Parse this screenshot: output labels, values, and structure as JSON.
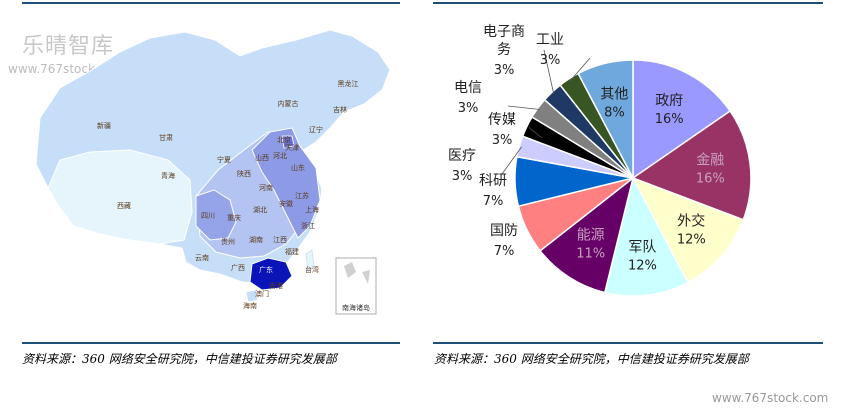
{
  "watermark": {
    "title": "乐晴智库",
    "url": "www.767stock.com",
    "bottom_url": "www.767stock.com"
  },
  "map": {
    "south_china_sea_label": "南海诸岛",
    "provinces": [
      {
        "name": "黑龙江",
        "level": 1
      },
      {
        "name": "吉林",
        "level": 1
      },
      {
        "name": "辽宁",
        "level": 2
      },
      {
        "name": "内蒙古",
        "level": 1
      },
      {
        "name": "新疆",
        "level": 1
      },
      {
        "name": "甘肃",
        "level": 1
      },
      {
        "name": "青海",
        "level": 0
      },
      {
        "name": "西藏",
        "level": 0
      },
      {
        "name": "宁夏",
        "level": 1
      },
      {
        "name": "陕西",
        "level": 3
      },
      {
        "name": "山西",
        "level": 3
      },
      {
        "name": "河北",
        "level": 3
      },
      {
        "name": "北京",
        "level": 4
      },
      {
        "name": "天津",
        "level": 3
      },
      {
        "name": "山东",
        "level": 3
      },
      {
        "name": "河南",
        "level": 2
      },
      {
        "name": "四川",
        "level": 3
      },
      {
        "name": "重庆",
        "level": 2
      },
      {
        "name": "湖北",
        "level": 2
      },
      {
        "name": "安徽",
        "level": 2
      },
      {
        "name": "江苏",
        "level": 3
      },
      {
        "name": "上海",
        "level": 3
      },
      {
        "name": "浙江",
        "level": 3
      },
      {
        "name": "贵州",
        "level": 2
      },
      {
        "name": "湖南",
        "level": 2
      },
      {
        "name": "江西",
        "level": 2
      },
      {
        "name": "福建",
        "level": 2
      },
      {
        "name": "云南",
        "level": 1
      },
      {
        "name": "广西",
        "level": 1
      },
      {
        "name": "广东",
        "level": 5
      },
      {
        "name": "台湾",
        "level": 0
      },
      {
        "name": "香港",
        "level": 4
      },
      {
        "name": "澳门",
        "level": 4
      },
      {
        "name": "海南",
        "level": 1
      }
    ]
  },
  "chart_data": {
    "type": "pie",
    "slices": [
      {
        "label": "政府",
        "value": 16,
        "pct": "16%",
        "color": "#9999ff"
      },
      {
        "label": "金融",
        "value": 16,
        "pct": "16%",
        "color": "#993366"
      },
      {
        "label": "外交",
        "value": 12,
        "pct": "12%",
        "color": "#ffffcc"
      },
      {
        "label": "军队",
        "value": 12,
        "pct": "12%",
        "color": "#ccffff"
      },
      {
        "label": "能源",
        "value": 11,
        "pct": "11%",
        "color": "#660066"
      },
      {
        "label": "国防",
        "value": 7,
        "pct": "7%",
        "color": "#ff8080"
      },
      {
        "label": "科研",
        "value": 7,
        "pct": "7%",
        "color": "#0066cc"
      },
      {
        "label": "医疗",
        "value": 3,
        "pct": "3%",
        "color": "#ccccff"
      },
      {
        "label": "传媒",
        "value": 3,
        "pct": "3%",
        "color": "#000000"
      },
      {
        "label": "电信",
        "value": 3,
        "pct": "3%",
        "color": "#808080"
      },
      {
        "label": "电子商务",
        "value": 3,
        "pct": "3%",
        "color": "#1f3864"
      },
      {
        "label": "工业",
        "value": 3,
        "pct": "3%",
        "color": "#375623"
      },
      {
        "label": "其他",
        "value": 8,
        "pct": "8%",
        "color": "#6fa8dc"
      }
    ]
  },
  "sources": {
    "left": "资料来源：360 网络安全研究院，中信建投证券研究发展部",
    "right": "资料来源：360 网络安全研究院，中信建投证券研究发展部"
  }
}
